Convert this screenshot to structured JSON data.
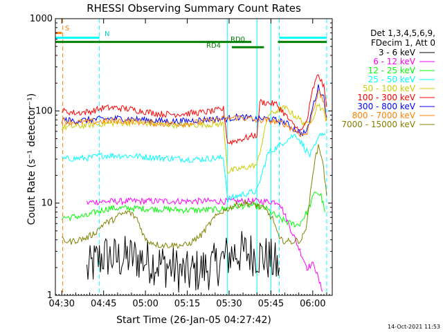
{
  "chart_data": {
    "type": "line",
    "title": "RHESSI Observing Summary Count Rates",
    "xlabel": "Start Time (26-Jan-05 04:27:42)",
    "ylabel": "Count Rate (s⁻¹ detector⁻¹)",
    "yscale": "log",
    "ylim": [
      1,
      1000
    ],
    "xlim": [
      "04:27:42",
      "06:07:00"
    ],
    "x_ticks": [
      "04:30",
      "04:45",
      "05:00",
      "05:15",
      "05:30",
      "05:45",
      "06:00"
    ],
    "y_ticks": [
      "1",
      "10",
      "100",
      "1000"
    ],
    "legend_header": [
      "Det 1,3,4,5,6,9,",
      "FDecim 1, Att 0"
    ],
    "legend_position": "right",
    "footer_date": "14-Oct-2021 11:53",
    "annotations": {
      "S": "S",
      "N": "N",
      "RD0": "RD0",
      "RD4": "RD4"
    },
    "flag_intervals": [
      {
        "label": "S",
        "color": "#ff8000",
        "start": "04:27:42",
        "end": "04:30:00",
        "level": 700
      },
      {
        "label": "N",
        "color": "#00ffff",
        "start": "04:27:42",
        "end": "04:43:30",
        "level": 620
      },
      {
        "label": "N",
        "color": "#00ffff",
        "start": "05:48:00",
        "end": "06:05:00",
        "level": 620
      },
      {
        "label": "RD0",
        "color": "#008000",
        "start": "04:27:42",
        "end": "05:38:00",
        "level": 560
      },
      {
        "label": "RD0",
        "color": "#008000",
        "start": "05:47:30",
        "end": "06:05:00",
        "level": 560
      },
      {
        "label": "RD4",
        "color": "#008000",
        "start": "05:31:00",
        "end": "05:42:30",
        "level": 490
      }
    ],
    "vertical_markers": [
      {
        "time": "04:27:42",
        "color": "#00ffff",
        "style": "solid"
      },
      {
        "time": "04:30:20",
        "color": "#ff8000",
        "style": "dashed"
      },
      {
        "time": "04:43:30",
        "color": "#00ffff",
        "style": "dashed"
      },
      {
        "time": "05:29:20",
        "color": "#00ffff",
        "style": "solid"
      },
      {
        "time": "05:40:00",
        "color": "#00ffff",
        "style": "solid"
      },
      {
        "time": "05:45:00",
        "color": "#00ffff",
        "style": "solid"
      },
      {
        "time": "05:48:00",
        "color": "#00ffff",
        "style": "dashed"
      },
      {
        "time": "06:05:00",
        "color": "#00ffff",
        "style": "dashed"
      }
    ],
    "series": [
      {
        "name": "3 - 6 keV",
        "color": "#000000",
        "x": [
          "04:39:00",
          "04:42:00",
          "04:45:00",
          "04:50:00",
          "04:55:00",
          "05:00:00",
          "05:05:00",
          "05:10:00",
          "05:15:00",
          "05:20:00",
          "05:25:00",
          "05:29:00",
          "05:32:00",
          "05:36:00",
          "05:40:00",
          "05:44:00",
          "05:48:00"
        ],
        "y": [
          1.8,
          2.3,
          2.7,
          2.5,
          2.6,
          2.4,
          2.2,
          2.0,
          1.7,
          1.9,
          2.1,
          2.6,
          2.9,
          2.9,
          2.8,
          2.5,
          2.0
        ]
      },
      {
        "name": "6 - 12 keV",
        "color": "#ff00ff",
        "x": [
          "04:39:00",
          "04:41:00",
          "04:45:00",
          "04:55:00",
          "05:05:00",
          "05:15:00",
          "05:25:00",
          "05:30:00",
          "05:35:00",
          "05:40:00",
          "05:45:00",
          "05:48:00",
          "05:58:00",
          "06:00:30",
          "06:02:00",
          "06:03:30"
        ],
        "y": [
          10.0,
          10.3,
          10.4,
          10.5,
          10.5,
          10.5,
          10.5,
          10.4,
          10.5,
          10.5,
          10.4,
          10.3,
          2.0,
          2.2,
          1.5,
          1.1
        ]
      },
      {
        "name": "12 - 25 keV",
        "color": "#00ff00",
        "x": [
          "04:30:00",
          "04:33:00",
          "04:36:00",
          "04:39:00",
          "04:42:00",
          "04:47:00",
          "04:55:00",
          "05:05:00",
          "05:15:00",
          "05:20:00",
          "05:25:00",
          "05:29:00",
          "05:33:00",
          "05:38:00",
          "05:43:00",
          "05:48:00",
          "05:52:00",
          "05:55:00",
          "05:58:00",
          "06:01:00",
          "06:03:00",
          "06:04:30"
        ],
        "y": [
          7.0,
          7.0,
          7.2,
          7.2,
          8.0,
          8.8,
          8.8,
          8.6,
          8.4,
          8.4,
          8.5,
          8.7,
          9.3,
          9.5,
          8.8,
          6.8,
          6.0,
          5.8,
          8.0,
          13.5,
          12.0,
          8.0
        ]
      },
      {
        "name": "25 - 50 keV",
        "color": "#00ffff",
        "x": [
          "04:30:00",
          "04:40:00",
          "04:45:00",
          "04:55:00",
          "05:05:00",
          "05:15:00",
          "05:20:00",
          "05:28:00",
          "05:29:30",
          "05:35:00",
          "05:40:00",
          "05:44:00",
          "05:47:00",
          "05:50:00",
          "05:52:00",
          "05:54:00",
          "05:56:00",
          "05:57:30",
          "05:59:00",
          "06:01:00",
          "06:03:00",
          "06:04:30"
        ],
        "y": [
          30.0,
          31.0,
          33.0,
          32.5,
          31.0,
          30.0,
          30.0,
          31.0,
          11.0,
          12.5,
          13.5,
          35.0,
          40.0,
          47.0,
          52.0,
          55.0,
          45.0,
          38.0,
          33.0,
          42.0,
          58.0,
          55.0
        ]
      },
      {
        "name": "50 - 100 keV",
        "color": "#cccc00",
        "x": [
          "04:30:00",
          "04:40:00",
          "04:45:00",
          "04:55:00",
          "05:05:00",
          "05:15:00",
          "05:20:00",
          "05:28:00",
          "05:29:30",
          "05:35:00",
          "05:40:00",
          "05:44:00",
          "05:47:00",
          "05:50:00",
          "05:53:00",
          "05:56:00",
          "05:58:00",
          "06:00:00",
          "06:02:00",
          "06:04:00",
          "06:05:00"
        ],
        "y": [
          66.0,
          70.0,
          73.0,
          75.0,
          72.0,
          70.0,
          71.0,
          72.0,
          22.0,
          24.0,
          26.0,
          90.0,
          100.0,
          108.0,
          92.0,
          78.0,
          70.0,
          85.0,
          120.0,
          95.0,
          80.0
        ]
      },
      {
        "name": "100 - 300 keV",
        "color": "#ff0000",
        "x": [
          "04:30:00",
          "04:35:00",
          "04:40:00",
          "04:45:00",
          "04:50:00",
          "04:55:00",
          "05:00:00",
          "05:05:00",
          "05:10:00",
          "05:15:00",
          "05:20:00",
          "05:25:00",
          "05:28:00",
          "05:29:30",
          "05:35:00",
          "05:40:00",
          "05:41:00",
          "05:44:00",
          "05:47:00",
          "05:50:00",
          "05:53:00",
          "05:56:00",
          "05:58:00",
          "06:00:00",
          "06:02:00",
          "06:04:00",
          "06:05:00"
        ],
        "y": [
          100.0,
          95.0,
          98.0,
          108.0,
          108.0,
          104.0,
          98.0,
          93.0,
          92.0,
          94.0,
          96.0,
          100.0,
          105.0,
          45.0,
          50.0,
          55.0,
          125.0,
          122.0,
          118.0,
          92.0,
          70.0,
          60.0,
          80.0,
          170.0,
          250.0,
          180.0,
          110.0
        ]
      },
      {
        "name": "300 - 800 keV",
        "color": "#0000ff",
        "x": [
          "04:30:00",
          "04:35:00",
          "04:40:00",
          "04:45:00",
          "04:50:00",
          "04:55:00",
          "05:00:00",
          "05:05:00",
          "05:10:00",
          "05:15:00",
          "05:20:00",
          "05:25:00",
          "05:29:00",
          "05:33:00",
          "05:37:00",
          "05:40:00",
          "05:43:00",
          "05:46:00",
          "05:50:00",
          "05:53:00",
          "05:56:00",
          "05:58:00",
          "06:00:00",
          "06:02:00",
          "06:04:00",
          "06:05:00"
        ],
        "y": [
          80.0,
          78.0,
          80.0,
          82.0,
          83.0,
          82.0,
          80.0,
          78.0,
          77.0,
          78.0,
          80.0,
          82.0,
          82.0,
          86.0,
          84.0,
          81.0,
          83.0,
          80.0,
          75.0,
          65.0,
          57.0,
          60.0,
          110.0,
          180.0,
          140.0,
          85.0
        ]
      },
      {
        "name": "800 - 7000 keV",
        "color": "#ff8000",
        "x": [
          "04:30:00",
          "04:35:00",
          "04:40:00",
          "04:45:00",
          "04:50:00",
          "04:55:00",
          "05:00:00",
          "05:05:00",
          "05:10:00",
          "05:15:00",
          "05:20:00",
          "05:25:00",
          "05:29:00",
          "05:33:00",
          "05:37:00",
          "05:40:00",
          "05:43:00",
          "05:46:00",
          "05:50:00",
          "05:53:00",
          "05:56:00",
          "05:58:00",
          "06:00:00",
          "06:02:00",
          "06:04:00",
          "06:05:00"
        ],
        "y": [
          78.0,
          75.0,
          76.0,
          77.0,
          78.0,
          77.0,
          75.0,
          73.0,
          72.0,
          73.0,
          76.0,
          80.0,
          82.0,
          85.0,
          83.0,
          78.0,
          80.0,
          77.0,
          72.0,
          63.0,
          55.0,
          57.0,
          100.0,
          160.0,
          125.0,
          78.0
        ]
      },
      {
        "name": "7000 - 15000 keV",
        "color": "#808000",
        "x": [
          "04:30:00",
          "04:33:00",
          "04:36:00",
          "04:39:00",
          "04:42:00",
          "04:45:00",
          "04:48:00",
          "04:51:00",
          "04:54:00",
          "04:57:00",
          "05:00:00",
          "05:05:00",
          "05:10:00",
          "05:15:00",
          "05:20:00",
          "05:24:00",
          "05:27:00",
          "05:29:00",
          "05:32:00",
          "05:36:00",
          "05:40:00",
          "05:43:00",
          "05:46:00",
          "05:48:00",
          "05:52:00",
          "05:56:00",
          "05:58:00",
          "06:00:00",
          "06:02:00",
          "06:03:30",
          "06:05:00"
        ],
        "y": [
          4.0,
          3.8,
          4.0,
          4.2,
          4.8,
          6.0,
          6.5,
          7.5,
          8.0,
          6.8,
          4.0,
          3.5,
          3.5,
          3.5,
          4.5,
          6.5,
          8.0,
          8.5,
          9.5,
          10.0,
          9.5,
          8.5,
          6.5,
          4.0,
          3.8,
          4.0,
          6.0,
          22.0,
          42.0,
          30.0,
          12.0
        ]
      }
    ]
  }
}
